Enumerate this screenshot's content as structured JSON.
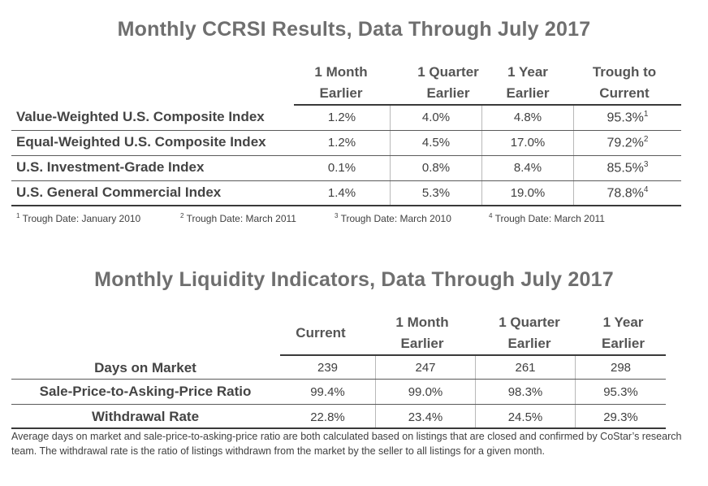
{
  "ccrsi": {
    "title": "Monthly CCRSI Results, Data Through July 2017",
    "columns": [
      {
        "line1": "1 Month",
        "line2": "Earlier"
      },
      {
        "line1": "1 Quarter",
        "line2": "Earlier"
      },
      {
        "line1": "1 Year",
        "line2": "Earlier"
      },
      {
        "line1": "Trough to",
        "line2": "Current"
      }
    ],
    "rows": [
      {
        "label": "Value-Weighted U.S. Composite Index",
        "values": [
          "1.2%",
          "4.0%",
          "4.8%",
          "95.3%"
        ],
        "sup": "1"
      },
      {
        "label": "Equal-Weighted U.S. Composite Index",
        "values": [
          "1.2%",
          "4.5%",
          "17.0%",
          "79.2%"
        ],
        "sup": "2"
      },
      {
        "label": "U.S. Investment-Grade Index",
        "values": [
          "0.1%",
          "0.8%",
          "8.4%",
          "85.5%"
        ],
        "sup": "3"
      },
      {
        "label": "U.S. General Commercial Index",
        "values": [
          "1.4%",
          "5.3%",
          "19.0%",
          "78.8%"
        ],
        "sup": "4"
      }
    ],
    "footnotes": [
      {
        "sup": "1",
        "text": "Trough Date: January 2010"
      },
      {
        "sup": "2",
        "text": "Trough Date: March 2011"
      },
      {
        "sup": "3",
        "text": "Trough Date: March 2010"
      },
      {
        "sup": "4",
        "text": "Trough Date: March 2011"
      }
    ]
  },
  "liquidity": {
    "title": "Monthly Liquidity Indicators, Data Through July 2017",
    "columns": [
      {
        "line1": "Current",
        "line2": ""
      },
      {
        "line1": "1 Month",
        "line2": "Earlier"
      },
      {
        "line1": "1 Quarter",
        "line2": "Earlier"
      },
      {
        "line1": "1 Year",
        "line2": "Earlier"
      }
    ],
    "rows": [
      {
        "label": "Days on Market",
        "values": [
          "239",
          "247",
          "261",
          "298"
        ]
      },
      {
        "label": "Sale-Price-to-Asking-Price Ratio",
        "values": [
          "99.4%",
          "99.0%",
          "98.3%",
          "95.3%"
        ]
      },
      {
        "label": "Withdrawal Rate",
        "values": [
          "22.8%",
          "23.4%",
          "24.5%",
          "29.3%"
        ]
      }
    ],
    "note": "Average days on market and sale-price-to-asking-price ratio are both calculated based on listings that are closed and confirmed by CoStar’s research team. The withdrawal rate is the ratio of listings withdrawn from the market by the seller to all listings for a given month."
  }
}
